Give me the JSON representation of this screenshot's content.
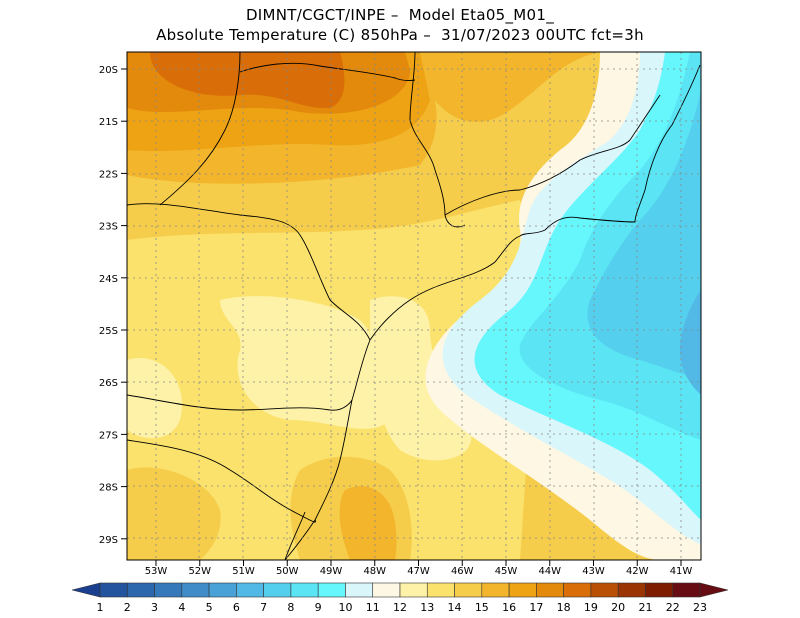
{
  "header": {
    "line1": "DIMNT/CGCT/INPE –  Model Eta05_M01_",
    "line2": "Absolute Temperature (C) 850hPa –  31/07/2023 00UTC fct=3h"
  },
  "map": {
    "lat_labels": [
      "20S",
      "21S",
      "22S",
      "23S",
      "24S",
      "25S",
      "26S",
      "27S",
      "28S",
      "29S"
    ],
    "lon_labels": [
      "53W",
      "52W",
      "51W",
      "50W",
      "49W",
      "48W",
      "47W",
      "46W",
      "45W",
      "44W",
      "43W",
      "42W",
      "41W"
    ],
    "lat_range": [
      -29.5,
      -19.5
    ],
    "lon_range": [
      -53.7,
      -40.6
    ]
  },
  "colorbar": {
    "labels": [
      "1",
      "2",
      "3",
      "4",
      "5",
      "6",
      "7",
      "8",
      "9",
      "10",
      "11",
      "12",
      "13",
      "14",
      "15",
      "16",
      "17",
      "18",
      "19",
      "20",
      "21",
      "22",
      "23"
    ],
    "colors": [
      "#1b3f8f",
      "#23549d",
      "#2c66ac",
      "#3579bb",
      "#3f8cc8",
      "#48a2d8",
      "#52b9e6",
      "#55cfee",
      "#5ae4f4",
      "#66f7fd",
      "#d9f6fb",
      "#fdf7e3",
      "#fdf2a8",
      "#fbe26d",
      "#f6cd4a",
      "#f2b52c",
      "#eda313",
      "#e38a0c",
      "#d96d08",
      "#b94e05",
      "#9a3402",
      "#7e1c01",
      "#670c12"
    ],
    "unit": "C"
  }
}
